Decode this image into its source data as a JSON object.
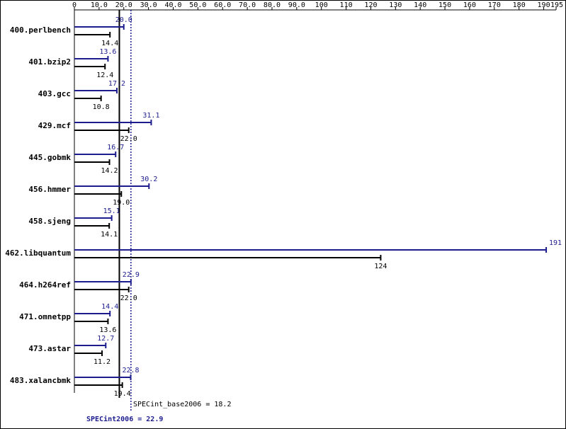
{
  "chart_data": {
    "type": "bar",
    "categories": [
      "400.perlbench",
      "401.bzip2",
      "403.gcc",
      "429.mcf",
      "445.gobmk",
      "456.hmmer",
      "458.sjeng",
      "462.libquantum",
      "464.h264ref",
      "471.omnetpp",
      "473.astar",
      "483.xalancbmk"
    ],
    "series": [
      {
        "color": "#1c1c8e",
        "values": [
          20.0,
          13.6,
          17.2,
          31.1,
          16.7,
          30.2,
          15.1,
          191,
          22.9,
          14.4,
          12.7,
          22.8
        ],
        "value_labels": [
          "20.0",
          "13.6",
          "17.2",
          "31.1",
          "16.7",
          "30.2",
          "15.1",
          "191",
          "22.9",
          "14.4",
          "12.7",
          "22.8"
        ]
      },
      {
        "color": "#000000",
        "values": [
          14.4,
          12.4,
          10.8,
          22.0,
          14.2,
          19.0,
          14.1,
          124,
          22.0,
          13.6,
          11.2,
          19.4
        ],
        "value_labels": [
          "14.4",
          "12.4",
          "10.8",
          "22.0",
          "14.2",
          "19.0",
          "14.1",
          "124",
          "22.0",
          "13.6",
          "11.2",
          "19.4"
        ]
      }
    ],
    "xlim": [
      0,
      195
    ],
    "xticks": [
      0,
      {
        "value": 10,
        "label": "10.0"
      },
      {
        "value": 20,
        "label": "20.0"
      },
      {
        "value": 30,
        "label": "30.0"
      },
      {
        "value": 40,
        "label": "40.0"
      },
      {
        "value": 50,
        "label": "50.0"
      },
      {
        "value": 60,
        "label": "60.0"
      },
      {
        "value": 70,
        "label": "70.0"
      },
      {
        "value": 80,
        "label": "80.0"
      },
      {
        "value": 90,
        "label": "90.0"
      },
      100,
      110,
      120,
      130,
      140,
      150,
      160,
      170,
      180,
      190,
      195
    ],
    "reference_lines": [
      {
        "label": "SPECint_base2006 = 18.2",
        "value": 18.2,
        "color": "#000000",
        "style": "solid"
      },
      {
        "label": "SPECint2006 = 22.9",
        "value": 22.9,
        "color": "#1c1c8e",
        "style": "dotted"
      }
    ]
  }
}
